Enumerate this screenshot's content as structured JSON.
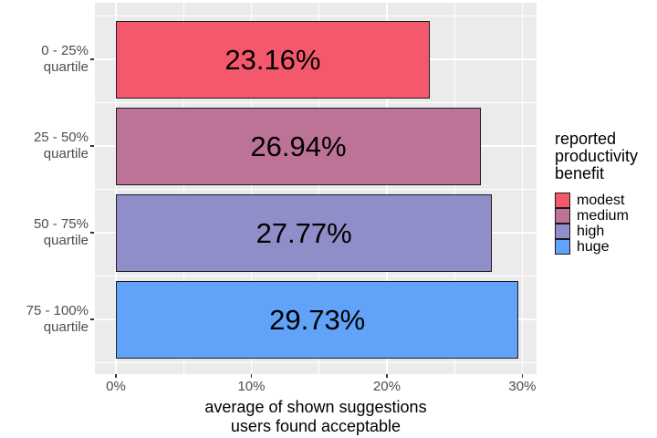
{
  "figure": {
    "background": "#FFFFFF",
    "panel_background": "#EBEBEB",
    "grid_color": "#FFFFFF",
    "axis_text_color": "#4D4D4D",
    "text_color": "#000000",
    "bar_border_color": "#1A1A1A",
    "tick_color": "#333333"
  },
  "chart_data": {
    "type": "bar",
    "orientation": "horizontal",
    "title": "",
    "xlabel": "average of shown suggestions users found acceptable",
    "xlabel_lines": [
      "average of shown suggestions",
      "users found acceptable"
    ],
    "ylabel": "",
    "xlim": [
      -1.55,
      31.05
    ],
    "x_major_ticks": [
      0,
      10,
      20,
      30
    ],
    "x_tick_labels": [
      "0%",
      "10%",
      "20%",
      "30%"
    ],
    "x_minor_ticks": [
      5,
      15,
      25
    ],
    "grid": true,
    "legend_position": "right",
    "categories": [
      "0 - 25% quartile",
      "25 - 50% quartile",
      "50 - 75% quartile",
      "75 - 100% quartile"
    ],
    "category_label_lines": [
      [
        "0 - 25%",
        "quartile"
      ],
      [
        "25 - 50%",
        "quartile"
      ],
      [
        "50 - 75%",
        "quartile"
      ],
      [
        "75 - 100%",
        "quartile"
      ]
    ],
    "values": [
      23.16,
      26.94,
      27.77,
      29.73
    ],
    "bar_labels": [
      "23.16%",
      "26.94%",
      "27.77%",
      "29.73%"
    ],
    "bar_colors": [
      "#F4586C",
      "#BD7398",
      "#908EC8",
      "#61A3F8"
    ]
  },
  "legend": {
    "title": "reported productivity benefit",
    "title_lines": [
      "reported",
      "productivity",
      "benefit"
    ],
    "entries": [
      {
        "label": "modest",
        "color": "#F4586C"
      },
      {
        "label": "medium",
        "color": "#BD7398"
      },
      {
        "label": "high",
        "color": "#908EC8"
      },
      {
        "label": "huge",
        "color": "#61A3F8"
      }
    ]
  }
}
